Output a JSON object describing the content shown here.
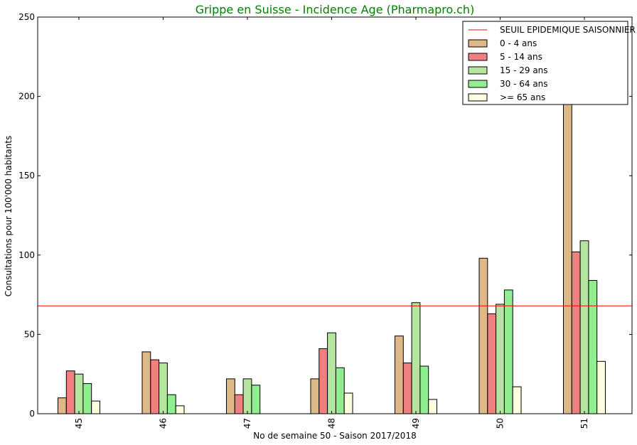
{
  "chart_data": {
    "type": "bar",
    "title": "Grippe en Suisse - Incidence Age (Pharmapro.ch)",
    "xlabel": "No de semaine 50 - Saison 2017/2018",
    "ylabel": "Consultations pour 100'000 habitants",
    "ylim": [
      0,
      250
    ],
    "yticks": [
      0,
      50,
      100,
      150,
      200,
      250
    ],
    "categories": [
      "45",
      "46",
      "47",
      "48",
      "49",
      "50",
      "51"
    ],
    "series": [
      {
        "name": "0 - 4 ans",
        "color": "#deb887",
        "values": [
          10,
          39,
          22,
          22,
          49,
          98,
          200
        ]
      },
      {
        "name": "5 - 14 ans",
        "color": "#f08080",
        "values": [
          27,
          34,
          12,
          41,
          32,
          63,
          102
        ]
      },
      {
        "name": "15 - 29 ans",
        "color": "#b4e6a0",
        "values": [
          25,
          32,
          22,
          51,
          70,
          69,
          109
        ]
      },
      {
        "name": "30 - 64 ans",
        "color": "#90ee90",
        "values": [
          19,
          12,
          18,
          29,
          30,
          78,
          84
        ]
      },
      {
        "name": ">= 65 ans",
        "color": "#ffffe0",
        "values": [
          8,
          5,
          0,
          13,
          9,
          17,
          33
        ]
      }
    ],
    "threshold": {
      "name": "SEUIL EPIDEMIQUE SAISONNIER",
      "value": 68,
      "color": "#ff0000"
    },
    "legend_position": "top-right",
    "grid": false
  }
}
